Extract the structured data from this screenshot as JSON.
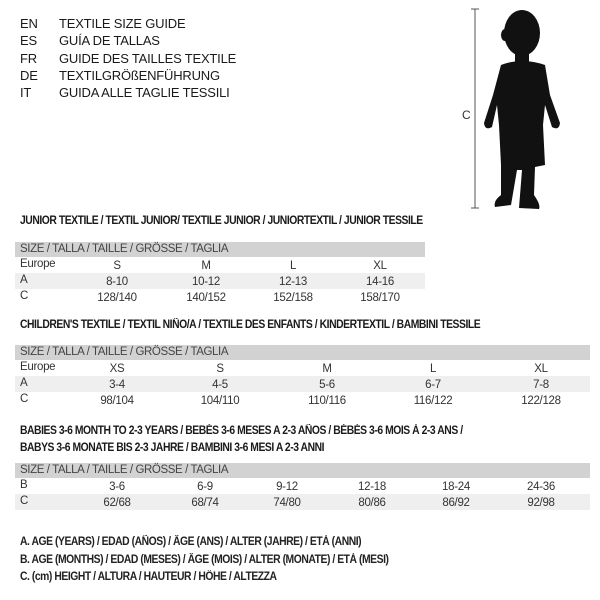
{
  "languages": [
    {
      "code": "EN",
      "name": "TEXTILE SIZE GUIDE"
    },
    {
      "code": "ES",
      "name": "GUÍA DE TALLAS"
    },
    {
      "code": "FR",
      "name": "GUIDE DES TAILLES TEXTILE"
    },
    {
      "code": "DE",
      "name": "TEXTILGRÖßENFÜHRUNG"
    },
    {
      "code": "IT",
      "name": "GUIDA ALLE TAGLIE TESSILI"
    }
  ],
  "figure": {
    "measure_label": "C",
    "icon": "child-silhouette"
  },
  "tables": [
    {
      "title": "JUNIOR TEXTILE / TEXTIL JUNIOR/ TEXTILE JUNIOR / JUNIORTEXTIL / JUNIOR TESSILE",
      "header": "SIZE / TALLA / TAILLE / GRÖSSE / TAGLIA",
      "rows": [
        {
          "label": "Europe",
          "values": [
            "S",
            "M",
            "L",
            "XL"
          ]
        },
        {
          "label": "A",
          "values": [
            "8-10",
            "10-12",
            "12-13",
            "14-16"
          ]
        },
        {
          "label": "C",
          "values": [
            "128/140",
            "140/152",
            "152/158",
            "158/170"
          ]
        }
      ]
    },
    {
      "title": "CHILDREN'S TEXTILE / TEXTIL NIÑO/A / TEXTILE DES ENFANTS / KINDERTEXTIL / BAMBINI TESSILE",
      "header": "SIZE / TALLA / TAILLE / GRÖSSE / TAGLIA",
      "rows": [
        {
          "label": "Europe",
          "values": [
            "XS",
            "S",
            "M",
            "L",
            "XL"
          ]
        },
        {
          "label": "A",
          "values": [
            "3-4",
            "4-5",
            "5-6",
            "6-7",
            "7-8"
          ]
        },
        {
          "label": "C",
          "values": [
            "98/104",
            "104/110",
            "110/116",
            "116/122",
            "122/128"
          ]
        }
      ]
    },
    {
      "title": "BABIES 3-6 MONTH TO 2-3 YEARS / BEBÉS 3-6 MESES A 2-3 AÑOS / BÉBÉS 3-6 MOIS À 2-3 ANS /",
      "title2": "BABYS 3-6 MONATE BIS 2-3 JAHRE / BAMBINI 3-6 MESI A 2-3 ANNI",
      "header": "SIZE / TALLA / TAILLE / GRÖSSE / TAGLIA",
      "rows": [
        {
          "label": "B",
          "values": [
            "3-6",
            "6-9",
            "9-12",
            "12-18",
            "18-24",
            "24-36"
          ]
        },
        {
          "label": "C",
          "values": [
            "62/68",
            "68/74",
            "74/80",
            "80/86",
            "86/92",
            "92/98"
          ]
        }
      ]
    }
  ],
  "legend": [
    "A. AGE (YEARS) / EDAD (AÑOS) / ÂGE (ANS) / ALTER (JAHRE) / ETÀ (ANNI)",
    "B. AGE (MONTHS) / EDAD (MESES) / ÂGE (MOIS) / ALTER (MONATE) / ETÀ (MESI)",
    "C. (cm) HEIGHT / ALTURA / HAUTEUR / HÖHE / ALTEZZA"
  ]
}
